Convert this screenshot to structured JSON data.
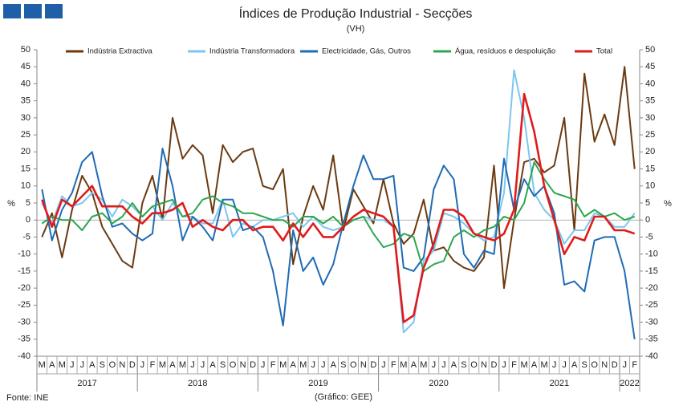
{
  "chart_data": {
    "type": "line",
    "title": "Índices de Produção Industrial - Secções",
    "subtitle": "(VH)",
    "y_label": "%",
    "y2_label": "%",
    "source": "Fonte: INE",
    "credit": "(Gráfico: GEE)",
    "categories": [
      "M",
      "A",
      "M",
      "J",
      "J",
      "A",
      "S",
      "O",
      "N",
      "D",
      "J",
      "F",
      "M",
      "A",
      "M",
      "J",
      "J",
      "A",
      "S",
      "O",
      "N",
      "D",
      "J",
      "F",
      "M",
      "A",
      "M",
      "J",
      "J",
      "A",
      "S",
      "O",
      "N",
      "D",
      "J",
      "F",
      "M",
      "A",
      "M",
      "J",
      "J",
      "A",
      "S",
      "O",
      "N",
      "D",
      "J",
      "F",
      "M",
      "A",
      "M",
      "J",
      "J",
      "A",
      "S",
      "O",
      "N",
      "D",
      "J",
      "F"
    ],
    "year_groups": [
      {
        "label": "2017",
        "span": 10
      },
      {
        "label": "2018",
        "span": 12
      },
      {
        "label": "2019",
        "span": 12
      },
      {
        "label": "2020",
        "span": 12
      },
      {
        "label": "2021",
        "span": 12
      },
      {
        "label": "2022",
        "span": 2
      }
    ],
    "ylim": [
      -40,
      50
    ],
    "yticks": [
      -40,
      -35,
      -30,
      -25,
      -20,
      -15,
      -10,
      -5,
      0,
      5,
      10,
      15,
      20,
      25,
      30,
      35,
      40,
      45,
      50
    ],
    "y2lim": [
      -40,
      50
    ],
    "y2ticks": [
      -40,
      -35,
      -30,
      -25,
      -20,
      -15,
      -10,
      -5,
      0,
      5,
      10,
      15,
      20,
      25,
      30,
      35,
      40,
      45,
      50
    ],
    "grid": false,
    "legend": "top",
    "series": [
      {
        "name": "Indústria Extractiva",
        "color": "#6b3a10",
        "values": [
          -5,
          2,
          -11,
          3,
          13,
          8,
          -2,
          -7,
          -12,
          -14,
          5,
          13,
          0,
          30,
          18,
          22,
          19,
          2,
          22,
          17,
          20,
          21,
          10,
          9,
          15,
          -13,
          1,
          10,
          3,
          19,
          -3,
          9,
          4,
          -1,
          12,
          -1,
          -7,
          -4,
          6,
          -9,
          -8,
          -12,
          -14,
          -15,
          -11,
          16,
          -20,
          0,
          17,
          18,
          14,
          16,
          30,
          -3,
          43,
          23,
          31,
          22,
          45,
          15
        ]
      },
      {
        "name": "Indústria Transformadora",
        "color": "#7cc6ef",
        "values": [
          5,
          -1,
          7,
          4,
          5,
          8,
          6,
          1,
          6,
          4,
          1,
          4,
          0,
          5,
          1,
          1,
          -1,
          -1,
          6,
          -5,
          -1,
          -2,
          0,
          0,
          1,
          2,
          -2,
          1,
          -2,
          -3,
          -2,
          0,
          1,
          0,
          0,
          -2,
          -33,
          -30,
          -12,
          -9,
          2,
          1,
          -1,
          -4,
          -6,
          -5,
          8,
          44,
          30,
          8,
          3,
          0,
          -7,
          -3,
          -3,
          2,
          1,
          -2,
          -2,
          2
        ]
      },
      {
        "name": "Electricidade, Gás, Outros",
        "color": "#1f6bb5",
        "values": [
          9,
          -6,
          3,
          8,
          17,
          20,
          7,
          -2,
          -1,
          -4,
          -6,
          -4,
          21,
          10,
          -6,
          1,
          -2,
          -6,
          6,
          6,
          -3,
          -2,
          -5,
          -15,
          -31,
          -3,
          -15,
          -11,
          -19,
          -13,
          -1,
          10,
          19,
          12,
          12,
          13,
          -14,
          -15,
          -11,
          9,
          16,
          12,
          -10,
          -14,
          -9,
          -10,
          18,
          3,
          12,
          7,
          10,
          2,
          -19,
          -18,
          -21,
          -6,
          -5,
          -5,
          -15,
          -35
        ]
      },
      {
        "name": "Água, resíduos e despoluição",
        "color": "#2ca64f",
        "values": [
          -1,
          1,
          0,
          0,
          -3,
          1,
          2,
          -1,
          1,
          5,
          1,
          4,
          5,
          6,
          1,
          2,
          6,
          7,
          5,
          4,
          2,
          2,
          1,
          0,
          0,
          -2,
          1,
          1,
          -1,
          1,
          -2,
          0,
          1,
          -4,
          -8,
          -7,
          -4,
          -5,
          -15,
          -13,
          -12,
          -5,
          -3,
          -5,
          -3,
          -2,
          1,
          0,
          5,
          17,
          12,
          8,
          7,
          6,
          1,
          3,
          1,
          2,
          0,
          1
        ]
      },
      {
        "name": "Total",
        "color": "#e01b1b",
        "values": [
          6,
          -2,
          6,
          4,
          7,
          10,
          4,
          4,
          4,
          1,
          -1,
          2,
          2,
          3,
          5,
          -2,
          0,
          -2,
          -3,
          0,
          0,
          -3,
          -2,
          -2,
          -6,
          -1,
          -5,
          -1,
          -5,
          -5,
          -2,
          1,
          3,
          2,
          1,
          -2,
          -30,
          -28,
          -14,
          -7,
          3,
          3,
          1,
          -4,
          -5,
          -6,
          -4,
          3,
          37,
          26,
          10,
          0,
          -10,
          -5,
          -6,
          1,
          1,
          -3,
          -3,
          -4
        ]
      }
    ]
  }
}
